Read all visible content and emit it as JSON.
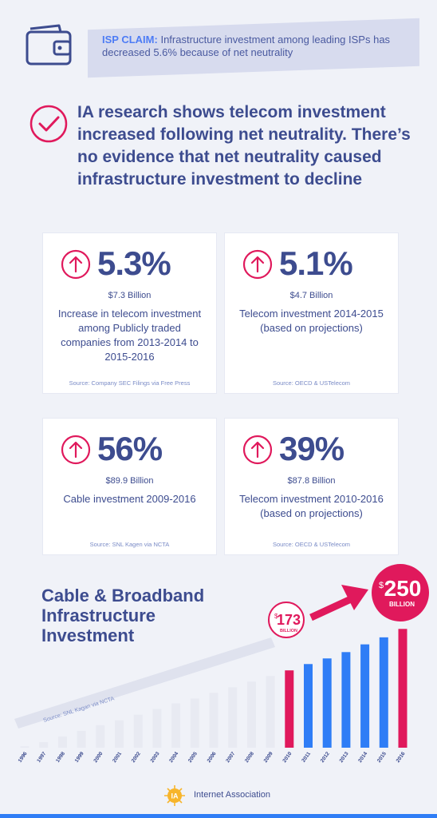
{
  "claim": {
    "label": "ISP CLAIM:",
    "text": "Infrastructure investment among leading ISPs has decreased 5.6% because of net neutrality"
  },
  "headline": "IA research shows telecom investment increased following net neutrality. There’s no evidence that net neutrality caused infrastructure investment to decline",
  "cards": [
    {
      "pct": "5.3%",
      "amount": "$7.3 Billion",
      "desc": "Increase in telecom investment among Publicly traded companies from 2013-2014 to 2015-2016",
      "source": "Source: Company SEC Filings via Free Press"
    },
    {
      "pct": "5.1%",
      "amount": "$4.7 Billion",
      "desc": "Telecom investment 2014-2015 (based on projections)",
      "source": "Source: OECD & USTelecom"
    },
    {
      "pct": "56%",
      "amount": "$89.9 Billion",
      "desc": "Cable investment 2009-2016",
      "source": "Source: SNL Kagen via NCTA"
    },
    {
      "pct": "39%",
      "amount": "$87.8 Billion",
      "desc": "Telecom investment 2010-2016 (based on projections)",
      "source": "Source: OECD & USTelecom"
    }
  ],
  "chart_data": {
    "type": "bar",
    "title": "Cable & Broadband Infrastructure Investment",
    "source": "Source: SNL Kagan via NCTA",
    "categories": [
      "1996",
      "1997",
      "1998",
      "1999",
      "2000",
      "2001",
      "2002",
      "2003",
      "2004",
      "2005",
      "2006",
      "2007",
      "2008",
      "2009",
      "2010",
      "2011",
      "2012",
      "2013",
      "2014",
      "2015",
      "2016"
    ],
    "values": [
      2,
      8,
      16,
      24,
      32,
      39,
      47,
      55,
      63,
      70,
      78,
      86,
      94,
      102,
      110,
      119,
      127,
      136,
      147,
      157,
      169
    ],
    "colors": [
      "#e8eaf2",
      "#e8eaf2",
      "#e8eaf2",
      "#e8eaf2",
      "#e8eaf2",
      "#e8eaf2",
      "#e8eaf2",
      "#e8eaf2",
      "#e8eaf2",
      "#e8eaf2",
      "#e8eaf2",
      "#e8eaf2",
      "#e8eaf2",
      "#e8eaf2",
      "#e0195c",
      "#2f7df6",
      "#2f7df6",
      "#2f7df6",
      "#2f7df6",
      "#2f7df6",
      "#e0195c"
    ],
    "annotations": [
      {
        "dollar": "$",
        "value": "173",
        "unit": "BILLION"
      },
      {
        "dollar": "$",
        "value": "250",
        "unit": "BILLION"
      }
    ]
  },
  "footer": {
    "brand": "Internet Association"
  },
  "colors": {
    "navy": "#3d4c8f",
    "pink": "#e0195c",
    "blue": "#2f7df6"
  }
}
